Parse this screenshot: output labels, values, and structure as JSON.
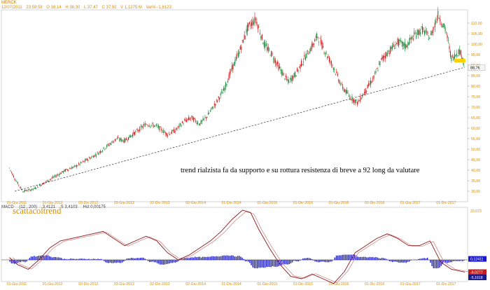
{
  "title": "MERCK",
  "ohlc": {
    "date": "12/07/2011",
    "time": "23:59:59",
    "open": "O 38,14",
    "high": "H 38,30",
    "low": "L 37,47",
    "close": "C 37,92",
    "volume": "V 1,1275 M",
    "change": "Var% -1,8123"
  },
  "macd": {
    "label": "MACD",
    "params": "(12 , 200)",
    "macd_value": "3,4121",
    "signal_value": "S 3,4103",
    "hist_value": "Hst 0,00175"
  },
  "colors": {
    "candle_up": "#1a8a3a",
    "candle_down": "#cc1a1a",
    "macd_line": "#8b1a1a",
    "histogram": "#1a1acc",
    "trendline": "#333333",
    "axis_text": "#d98c00",
    "annotation": "#000000",
    "watermark": "#d98c00",
    "price_badge": "#f5f5f5",
    "resistance_marker": "#ffd200"
  },
  "chart_data": [
    {
      "type": "candlestick",
      "title": "MERCK",
      "price_axis": {
        "ticks": [
          "110,00",
          "105,00",
          "100,00",
          "95,00",
          "90,00",
          "85,00",
          "80,00",
          "75,00",
          "70,00",
          "65,00",
          "60,00",
          "55,00",
          "50,00",
          "45,00",
          "40,00",
          "35,00",
          "30,00"
        ],
        "range": [
          27,
          115
        ]
      },
      "x_labels": [
        "01-Giu-2011",
        "01-Giu-2012",
        "03-Dic-2012",
        "03-Giu-2013",
        "02-Dic-2013",
        "02-Giu-2014",
        "01-Dic-2014",
        "01-Giu-2015",
        "01-Dic-2015",
        "01-Giu-2016",
        "01-Dic-2016",
        "01-Giu-2017",
        "01-Dic-2017"
      ],
      "price_path_x": [
        2011.45,
        2011.55,
        2011.7,
        2011.9,
        2012.1,
        2012.3,
        2012.5,
        2012.7,
        2012.9,
        2013.1,
        2013.3,
        2013.45,
        2013.6,
        2013.75,
        2013.85,
        2014.0,
        2014.2,
        2014.4,
        2014.55,
        2014.7,
        2014.85,
        2015.0,
        2015.15,
        2015.3,
        2015.45,
        2015.6,
        2015.75,
        2015.9,
        2016.05,
        2016.2,
        2016.35,
        2016.5,
        2016.65,
        2016.8,
        2016.95,
        2017.1,
        2017.2,
        2017.35,
        2017.5,
        2017.65,
        2017.8,
        2017.95,
        2018.1,
        2018.25,
        2018.4,
        2018.55,
        2018.7,
        2018.85,
        2019.0,
        2019.15,
        2019.3,
        2019.45,
        2019.6,
        2019.7,
        2019.85,
        2019.95
      ],
      "price_path_y": [
        41,
        36,
        30,
        31,
        34,
        37,
        40,
        42,
        45,
        48,
        52,
        55,
        54,
        57,
        59,
        62,
        61,
        57,
        59,
        63,
        65,
        62,
        66,
        72,
        78,
        88,
        97,
        108,
        112,
        100,
        95,
        88,
        82,
        86,
        93,
        99,
        104,
        96,
        89,
        80,
        75,
        72,
        78,
        84,
        93,
        97,
        101,
        99,
        104,
        107,
        103,
        114,
        106,
        93,
        97,
        90
      ],
      "last_price": "88,76",
      "trendline": {
        "from": [
          2011.55,
          30
        ],
        "to": [
          2019.95,
          89
        ]
      },
      "resistance_level": 92,
      "annotation": "trend rialzista fa da supporto e su rottura resistenza di breve a 92 long da valutare",
      "watermark": "scattacoltrend"
    },
    {
      "type": "line",
      "title": "MACD (12 , 200)",
      "x_labels": [
        "01-Giu-2011",
        "01-Giu-2012",
        "03-Dic-2012",
        "03-Giu-2013",
        "02-Dic-2013",
        "02-Giu-2014",
        "01-Dic-2014",
        "01-Giu-2015",
        "01-Dic-2015",
        "01-Giu-2016",
        "01-Dic-2016",
        "01-Giu-2017",
        "01-Dic-2017"
      ],
      "series": [
        {
          "x": [
            2011.45,
            2011.6,
            2011.8,
            2012.0,
            2012.2,
            2012.4,
            2012.6,
            2012.8,
            2013.0,
            2013.2,
            2013.4,
            2013.6,
            2013.8,
            2014.0,
            2014.2,
            2014.4,
            2014.6,
            2014.8,
            2015.0,
            2015.2,
            2015.4,
            2015.6,
            2015.8,
            2015.95,
            2016.1,
            2016.3,
            2016.5,
            2016.7,
            2016.9,
            2017.1,
            2017.3,
            2017.5,
            2017.7,
            2017.9,
            2018.1,
            2018.3,
            2018.5,
            2018.7,
            2018.9,
            2019.1,
            2019.3,
            2019.5,
            2019.7,
            2019.95
          ],
          "y": [
            1,
            -2,
            -4,
            0,
            5,
            8,
            9,
            10,
            11,
            12,
            9,
            6,
            8,
            10,
            8,
            3,
            0,
            2,
            5,
            8,
            12,
            17,
            21,
            20,
            13,
            5,
            -2,
            -7,
            -8,
            -6,
            -8,
            -10,
            -5,
            3,
            6,
            9,
            11,
            9,
            6,
            6,
            8,
            -1,
            -4,
            -5.16
          ]
        }
      ],
      "histogram_note": "blue bars oscillate around zero",
      "value_labels": [
        "0,12411",
        "-6,0277",
        "-5,1618"
      ],
      "top_value": "20,073",
      "ylim": [
        -8,
        21
      ]
    }
  ]
}
